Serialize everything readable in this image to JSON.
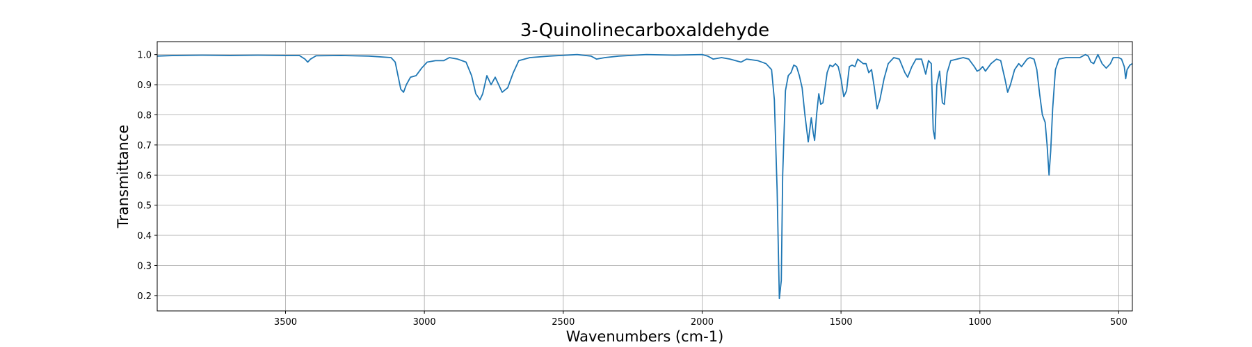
{
  "chart_data": {
    "type": "line",
    "title": "3-Quinolinecarboxaldehyde",
    "xlabel": "Wavenumbers (cm-1)",
    "ylabel": "Transmittance",
    "color": "#1f77b4",
    "grid": true,
    "xlim": [
      3962,
      451
    ],
    "ylim": [
      0.149,
      1.043
    ],
    "xticks": [
      3500,
      3000,
      2500,
      2000,
      1500,
      1000,
      500
    ],
    "yticks": [
      0.2,
      0.3,
      0.4,
      0.5,
      0.6,
      0.7,
      0.8,
      0.9,
      {
        "value": 1,
        "label": "1.0"
      }
    ],
    "x": [
      3962,
      3900,
      3800,
      3700,
      3600,
      3500,
      3450,
      3430,
      3420,
      3410,
      3390,
      3300,
      3200,
      3120,
      3105,
      3095,
      3085,
      3075,
      3065,
      3050,
      3030,
      3010,
      2990,
      2960,
      2930,
      2910,
      2880,
      2850,
      2830,
      2815,
      2800,
      2790,
      2775,
      2760,
      2745,
      2735,
      2720,
      2700,
      2680,
      2660,
      2620,
      2550,
      2450,
      2400,
      2380,
      2350,
      2300,
      2200,
      2100,
      2000,
      1980,
      1960,
      1930,
      1900,
      1860,
      1840,
      1800,
      1770,
      1750,
      1740,
      1730,
      1722,
      1715,
      1710,
      1700,
      1690,
      1680,
      1670,
      1660,
      1650,
      1640,
      1630,
      1618,
      1607,
      1600,
      1595,
      1588,
      1580,
      1573,
      1565,
      1550,
      1540,
      1530,
      1520,
      1510,
      1500,
      1490,
      1480,
      1470,
      1460,
      1450,
      1440,
      1420,
      1410,
      1400,
      1390,
      1380,
      1370,
      1360,
      1345,
      1330,
      1310,
      1290,
      1270,
      1260,
      1245,
      1230,
      1210,
      1195,
      1185,
      1175,
      1168,
      1162,
      1155,
      1145,
      1135,
      1128,
      1118,
      1105,
      1060,
      1040,
      1020,
      1010,
      1000,
      990,
      980,
      960,
      940,
      925,
      910,
      900,
      890,
      875,
      860,
      850,
      830,
      820,
      805,
      795,
      785,
      775,
      765,
      758,
      751,
      745,
      738,
      728,
      715,
      690,
      640,
      620,
      610,
      600,
      590,
      575,
      560,
      545,
      530,
      520,
      500,
      490,
      480,
      475,
      470,
      460,
      451
    ],
    "values": [
      0.995,
      0.997,
      0.998,
      0.997,
      0.998,
      0.997,
      0.997,
      0.985,
      0.975,
      0.985,
      0.996,
      0.997,
      0.995,
      0.99,
      0.975,
      0.93,
      0.885,
      0.875,
      0.9,
      0.925,
      0.93,
      0.955,
      0.975,
      0.98,
      0.98,
      0.99,
      0.985,
      0.975,
      0.93,
      0.87,
      0.85,
      0.87,
      0.93,
      0.9,
      0.925,
      0.905,
      0.875,
      0.89,
      0.94,
      0.98,
      0.99,
      0.995,
      1.0,
      0.995,
      0.985,
      0.99,
      0.995,
      1.0,
      0.998,
      1.0,
      0.995,
      0.985,
      0.99,
      0.985,
      0.975,
      0.985,
      0.98,
      0.97,
      0.95,
      0.85,
      0.55,
      0.19,
      0.25,
      0.6,
      0.88,
      0.93,
      0.94,
      0.965,
      0.96,
      0.93,
      0.89,
      0.8,
      0.71,
      0.79,
      0.74,
      0.715,
      0.8,
      0.87,
      0.835,
      0.84,
      0.94,
      0.965,
      0.96,
      0.97,
      0.96,
      0.92,
      0.86,
      0.88,
      0.96,
      0.965,
      0.96,
      0.985,
      0.97,
      0.97,
      0.94,
      0.95,
      0.89,
      0.82,
      0.85,
      0.92,
      0.97,
      0.99,
      0.985,
      0.94,
      0.925,
      0.96,
      0.985,
      0.985,
      0.935,
      0.98,
      0.97,
      0.75,
      0.72,
      0.9,
      0.945,
      0.84,
      0.835,
      0.94,
      0.98,
      0.99,
      0.985,
      0.96,
      0.945,
      0.95,
      0.96,
      0.945,
      0.97,
      0.985,
      0.98,
      0.92,
      0.875,
      0.9,
      0.95,
      0.97,
      0.96,
      0.985,
      0.99,
      0.985,
      0.95,
      0.87,
      0.8,
      0.775,
      0.7,
      0.6,
      0.68,
      0.82,
      0.95,
      0.985,
      0.99,
      0.99,
      1.0,
      0.995,
      0.975,
      0.97,
      1.0,
      0.97,
      0.955,
      0.97,
      0.99,
      0.99,
      0.985,
      0.96,
      0.92,
      0.95,
      0.965,
      0.97
    ]
  }
}
